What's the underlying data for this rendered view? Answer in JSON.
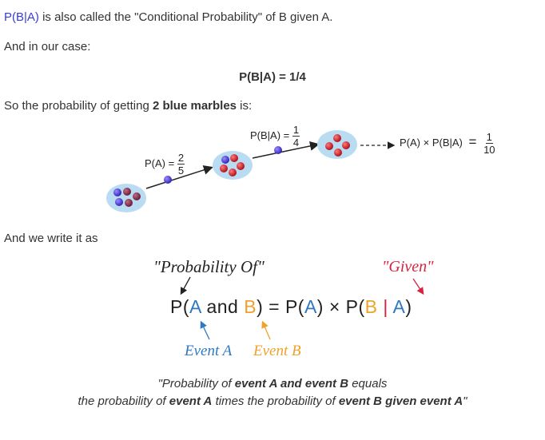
{
  "intro": {
    "term": "P(B|A)",
    "rest": " is also called the \"Conditional Probability\" of B given A."
  },
  "case_text": "And in our case:",
  "result_eq": "P(B|A) = 1/4",
  "prob_line": {
    "before": "So the probability of getting ",
    "bold": "2 blue marbles",
    "after": " is:"
  },
  "diagram": {
    "pa_label": "P(A) =",
    "pa_num": "2",
    "pa_den": "5",
    "pba_label": "P(B|A) =",
    "pba_num": "1",
    "pba_den": "4",
    "product_label": "P(A) × P(B|A)",
    "eq_sign": "=",
    "result_num": "1",
    "result_den": "10",
    "colors": {
      "bowl": "#b9dcf2",
      "blue_marble": "#4a3bd6",
      "red_marble": "#d11a24",
      "purple_marble": "#8a2a4a"
    }
  },
  "write_text": "And we write it as",
  "annotations": {
    "prob_of": "\"Probability Of\"",
    "given": "\"Given\"",
    "event_a": "Event A",
    "event_b": "Event B"
  },
  "formula": {
    "p1": "P(",
    "a1": "A",
    "and": "and",
    "b1": "B",
    "close1": ") = P(",
    "a2": "A",
    "close2": ") × P(",
    "b2": "B",
    "bar": "|",
    "a3": "A",
    "close3": ")"
  },
  "quote": {
    "l1_a": "\"Probability of ",
    "l1_b": "event A and event B",
    "l1_c": " equals",
    "l2_a": "the probability of ",
    "l2_b": "event A",
    "l2_c": " times the probability of ",
    "l2_d": "event B given event A",
    "l2_e": "\""
  }
}
